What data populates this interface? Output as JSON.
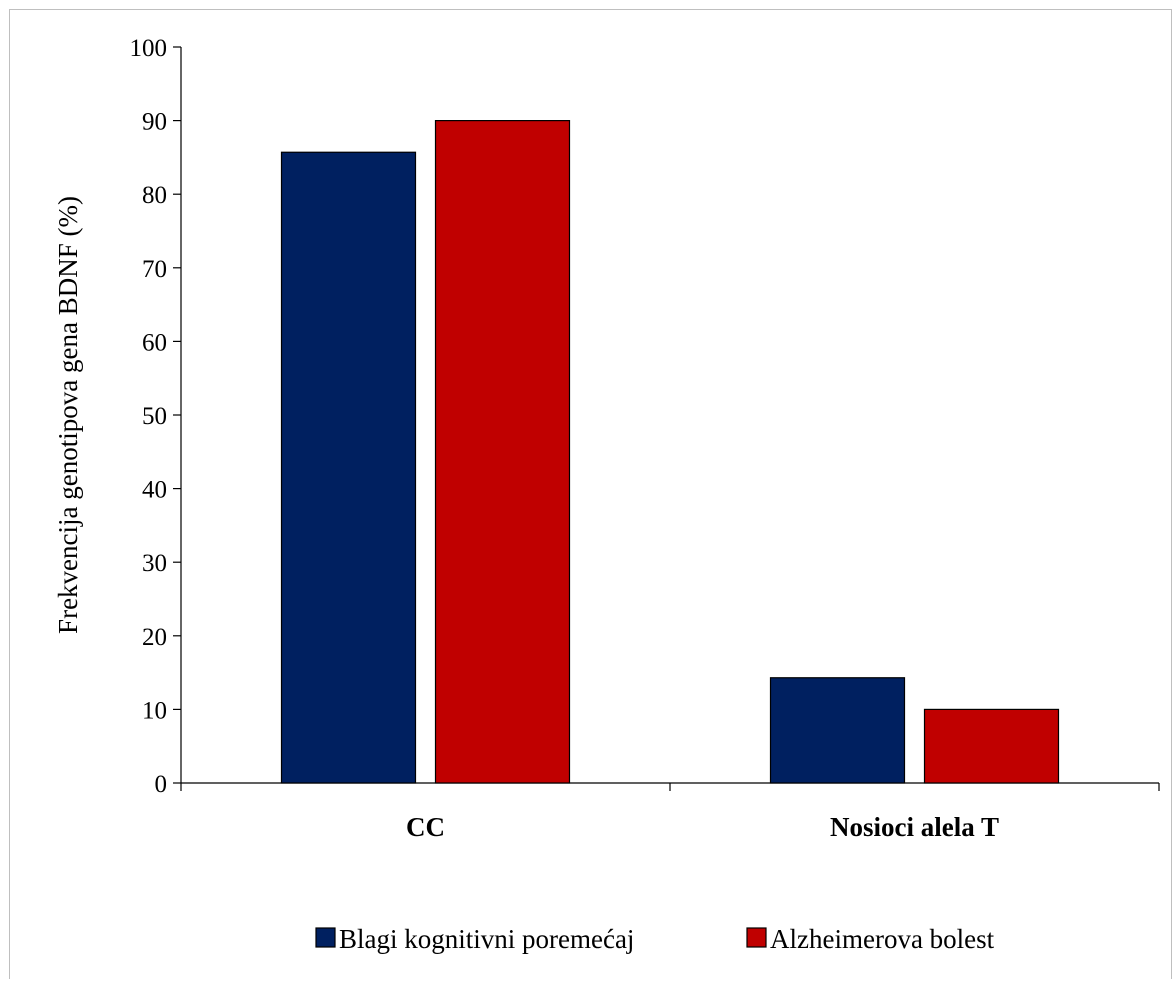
{
  "chart_data": {
    "type": "bar",
    "categories": [
      "CC",
      "Nosioci alela T"
    ],
    "series": [
      {
        "name": "Blagi kognitivni poremećaj",
        "values": [
          85.7,
          14.3
        ],
        "color": "#002060"
      },
      {
        "name": "Alzheimerova bolest",
        "values": [
          90.0,
          10.0
        ],
        "color": "#C00000"
      }
    ],
    "title": "",
    "xlabel": "",
    "ylabel": "Frekvencija genotipova gena BDNF (%)",
    "ylim": [
      0,
      100
    ],
    "yticks": [
      0,
      10,
      20,
      30,
      40,
      50,
      60,
      70,
      80,
      90,
      100
    ],
    "grid": false,
    "legend_position": "bottom"
  }
}
